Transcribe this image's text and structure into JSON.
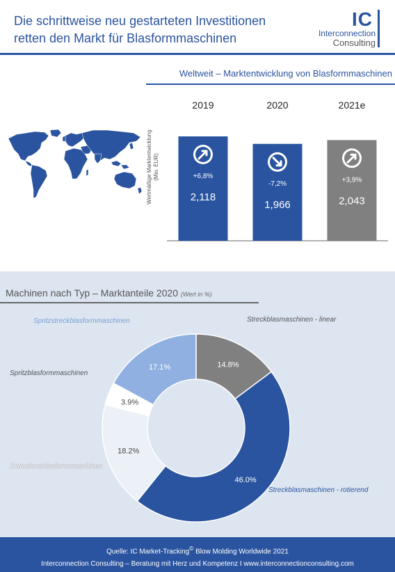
{
  "header": {
    "title_line1": "Die schrittweise neu gestarteten Investitionen",
    "title_line2": "retten den Markt für Blasformmaschinen",
    "logo_ic": "IC",
    "logo_line1": "Interconnection",
    "logo_line2": "Consulting"
  },
  "colors": {
    "brand": "#2a54a0",
    "grey": "#808080",
    "light_blue": "#8fb0e0",
    "pale": "#ecf1f8",
    "white": "#ffffff",
    "section_bg": "#dde5f1"
  },
  "market": {
    "title": "Weltweit – Marktentwicklung von Blasformmaschinen",
    "ylabel_line1": "Wertmäßige Marktentwicklung",
    "ylabel_line2": "(Mio. EUR)"
  },
  "chart_data": [
    {
      "type": "bar",
      "categories": [
        "2019",
        "2020",
        "2021e"
      ],
      "values": [
        2.118,
        1.966,
        2.043
      ],
      "value_labels": [
        "2,118",
        "1,966",
        "2,043"
      ],
      "changes": [
        "+6,8%",
        "-7,2%",
        "+3,9%"
      ],
      "trend_icons": [
        "arrow-up-right-icon",
        "arrow-down-right-icon",
        "arrow-up-right-icon"
      ],
      "bar_colors": [
        "#2a54a0",
        "#2a54a0",
        "#808080"
      ],
      "ylabel": "Wertmäßige Marktentwicklung (Mio. EUR)"
    },
    {
      "type": "pie",
      "title": "Machinen nach Typ – Marktanteile 2020",
      "subtitle": "(Wert in %)",
      "slices": [
        {
          "name": "Streckblasmaschinen - linear",
          "value": 14.8,
          "label": "14.8%",
          "color": "#808080"
        },
        {
          "name": "Streckblasmaschinen - rotierend",
          "value": 46.0,
          "label": "46.0%",
          "color": "#2a54a0"
        },
        {
          "name": "Extrusionsblasformmaschinen",
          "value": 18.2,
          "label": "18.2%",
          "color": "#ecf1f8"
        },
        {
          "name": "Spritzblasformmaschinen",
          "value": 3.9,
          "label": "3.9%",
          "color": "#ffffff"
        },
        {
          "name": "Spritzstreckblasformmaschinen",
          "value": 17.1,
          "label": "17.1%",
          "color": "#8fb0e0"
        }
      ]
    }
  ],
  "footer": {
    "line1_prefix": "Quelle: IC Market-Tracking",
    "line1_sup": "©",
    "line1_suffix": " Blow Molding Worldwide 2021",
    "line2": "Interconnection Consulting – Beratung mit Herz und Kompetenz  I  www.interconnectionconsulting.com"
  }
}
